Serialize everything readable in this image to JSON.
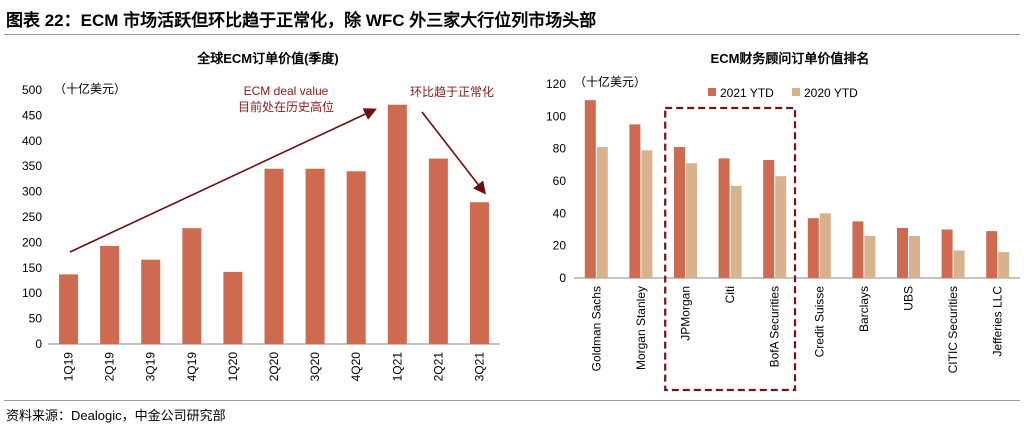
{
  "figure_title": "图表 22：ECM 市场活跃但环比趋于正常化，除 WFC 外三家大行位列市场头部",
  "source": "资料来源：Dealogic，中金公司研究部",
  "colors": {
    "bar": "#cd6a4f",
    "bar2020": "#d7b28c",
    "arrow": "#6b0f0f",
    "box": "#7a1010",
    "axis": "#888888"
  },
  "chart_data": [
    {
      "type": "bar",
      "title": "全球ECM订单价值(季度)",
      "unit_label": "（十亿美元）",
      "categories": [
        "1Q19",
        "2Q19",
        "3Q19",
        "4Q19",
        "1Q20",
        "2Q20",
        "3Q20",
        "4Q20",
        "1Q21",
        "2Q21",
        "3Q21"
      ],
      "values": [
        137,
        193,
        166,
        228,
        142,
        345,
        345,
        340,
        471,
        365,
        279
      ],
      "ylim": [
        0,
        500
      ],
      "yticks": [
        0,
        50,
        100,
        150,
        200,
        250,
        300,
        350,
        400,
        450,
        500
      ],
      "annotations": {
        "left_line1": "ECM deal value",
        "left_line2": "目前处在历史高位",
        "right": "环比趋于正常化"
      },
      "grid": false
    },
    {
      "type": "bar",
      "title": "ECM财务顾问订单价值排名",
      "unit_label": "（十亿美元）",
      "categories": [
        "Goldman Sachs",
        "Morgan Stanley",
        "JPMorgan",
        "Citi",
        "BofA Securities",
        "Credit Suisse",
        "Barclays",
        "UBS",
        "CITIC Securities",
        "Jefferies LLC"
      ],
      "series": [
        {
          "name": "2021 YTD",
          "values": [
            110,
            95,
            81,
            74,
            73,
            37,
            35,
            31,
            30,
            29
          ]
        },
        {
          "name": "2020 YTD",
          "values": [
            81,
            79,
            71,
            57,
            63,
            40,
            26,
            26,
            17,
            16
          ]
        }
      ],
      "ylim": [
        0,
        120
      ],
      "yticks": [
        0,
        20,
        40,
        60,
        80,
        100,
        120
      ],
      "legend": "top",
      "highlight_categories": [
        "JPMorgan",
        "Citi",
        "BofA Securities"
      ],
      "grid": false
    }
  ]
}
